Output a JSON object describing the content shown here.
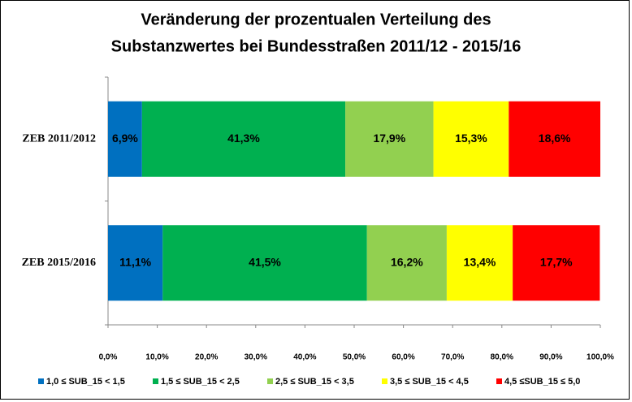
{
  "chart_data": {
    "type": "stacked-bar-horizontal",
    "title": [
      "Veränderung der prozentualen Verteilung des",
      "Substanzwertes bei Bundesstraßen 2011/12 - 2015/16"
    ],
    "categories": [
      "ZEB 2011/2012",
      "ZEB 2015/2016"
    ],
    "series": [
      {
        "name": "1,0 ≤ SUB_15 < 1,5",
        "color": "#0070c0",
        "values": [
          6.9,
          11.1
        ],
        "value_labels": [
          "6,9%",
          "11,1%"
        ]
      },
      {
        "name": "1,5 ≤ SUB_15 < 2,5",
        "color": "#00b050",
        "values": [
          41.3,
          41.5
        ],
        "value_labels": [
          "41,3%",
          "41,5%"
        ]
      },
      {
        "name": "2,5 ≤ SUB_15 < 3,5",
        "color": "#92d050",
        "values": [
          17.9,
          16.2
        ],
        "value_labels": [
          "17,9%",
          "16,2%"
        ]
      },
      {
        "name": "3,5 ≤ SUB_15 < 4,5",
        "color": "#ffff00",
        "values": [
          15.3,
          13.4
        ],
        "value_labels": [
          "15,3%",
          "13,4%"
        ]
      },
      {
        "name": "4,5 ≤SUB_15 ≤ 5,0",
        "color": "#ff0000",
        "values": [
          18.6,
          17.7
        ],
        "value_labels": [
          "18,6%",
          "17,7%"
        ]
      }
    ],
    "xlim": [
      0,
      100
    ],
    "xticks": [
      {
        "value": 0,
        "label": "0,0%"
      },
      {
        "value": 10,
        "label": "10,0%"
      },
      {
        "value": 20,
        "label": "20,0%"
      },
      {
        "value": 30,
        "label": "30,0%"
      },
      {
        "value": 40,
        "label": "40,0%"
      },
      {
        "value": 50,
        "label": "50,0%"
      },
      {
        "value": 60,
        "label": "60,0%"
      },
      {
        "value": 70,
        "label": "70,0%"
      },
      {
        "value": 80,
        "label": "80,0%"
      },
      {
        "value": 90,
        "label": "90,0%"
      },
      {
        "value": 100,
        "label": "100,0%"
      }
    ],
    "legend": "bottom"
  }
}
